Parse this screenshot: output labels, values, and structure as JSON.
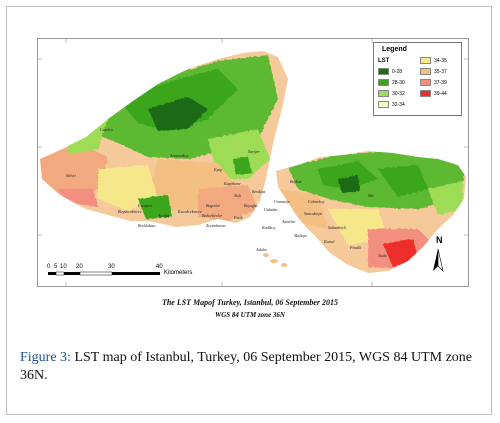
{
  "map": {
    "legend": {
      "title": "Legend",
      "subtitle": "LST",
      "items": [
        {
          "label": "0-28",
          "color": "#1f6b14"
        },
        {
          "label": "28-30",
          "color": "#3aa51c"
        },
        {
          "label": "30-32",
          "color": "#9fdc57"
        },
        {
          "label": "32-34",
          "color": "#fafcc9"
        },
        {
          "label": "34-35",
          "color": "#f7e78b"
        },
        {
          "label": "35-37",
          "color": "#f4bf83"
        },
        {
          "label": "37-39",
          "color": "#f28f7f"
        },
        {
          "label": "39-44",
          "color": "#ed2f2a"
        }
      ]
    },
    "scale_bar": {
      "ticks": [
        "0",
        "5",
        "10",
        "20",
        "30",
        "40"
      ],
      "unit": "Kilometers"
    },
    "north_label": "N",
    "place_labels": [
      "Silivri",
      "Catalca",
      "Arnavutkoy",
      "Eyup",
      "Sariyer",
      "Beykoz",
      "Sile",
      "Buyukcekmece",
      "Esenyurt",
      "Avcilar",
      "Beylikduzu",
      "Kucukcekmece",
      "Bagcilar",
      "Bahcelievler",
      "Zeytinburnu",
      "Fatih",
      "Beyoglu",
      "Sisli",
      "Kagithane",
      "Besiktas",
      "Uskudar",
      "Kadikoy",
      "Atasehir",
      "Umraniye",
      "Cekmekoy",
      "Sancaktepe",
      "Sultanbeyli",
      "Maltepe",
      "Kartal",
      "Pendik",
      "Tuzla",
      "Adalar"
    ],
    "caption_line1": "The LST Mapof Turkey, Istanbul, 06 September 2015",
    "caption_line2": "WGS 84  UTM zone 36N"
  },
  "figure_caption": {
    "label": "Figure 3:",
    "text": " LST map of Istanbul, Turkey, 06 September 2015, WGS 84 UTM zone 36N."
  }
}
